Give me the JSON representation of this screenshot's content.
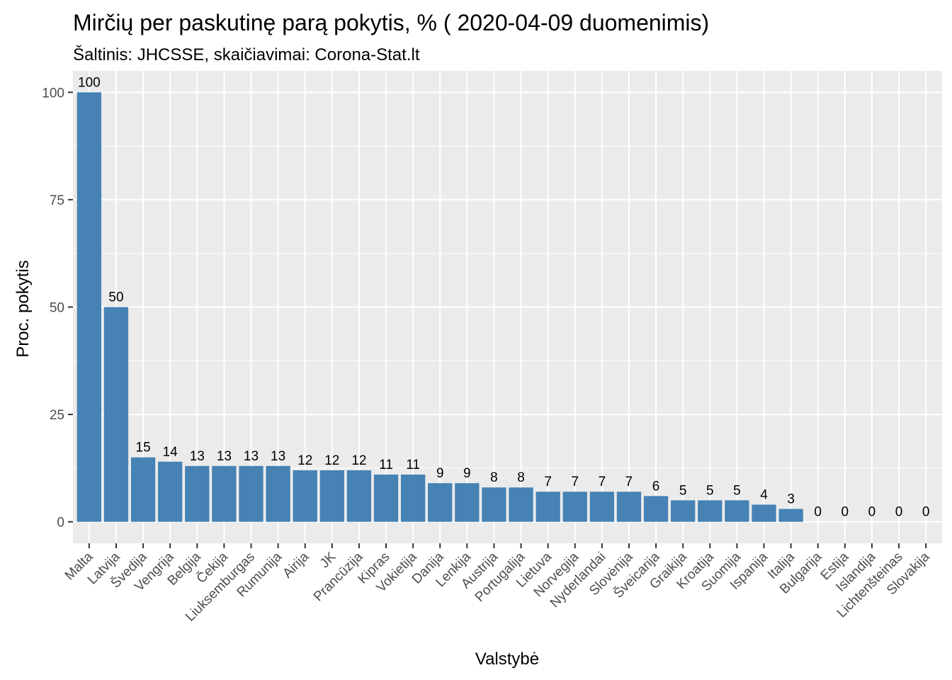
{
  "chart_data": {
    "type": "bar",
    "title": "Mirčių per paskutinę parą pokytis, % ( 2020-04-09 duomenimis)",
    "subtitle": "Šaltinis: JHCSSE, skaičiavimai: Corona-Stat.lt",
    "xlabel": "Valstybė",
    "ylabel": "Proc. pokytis",
    "ylim": [
      -5,
      105
    ],
    "yticks": [
      0,
      25,
      50,
      75,
      100
    ],
    "grid": true,
    "legend": "none",
    "colors": {
      "bar": "#4682B4",
      "panel": "#EBEBEB",
      "grid": "#FFFFFF",
      "tick": "#333333"
    },
    "categories": [
      "Malta",
      "Latvija",
      "Švedija",
      "Vengrija",
      "Belgija",
      "Čekija",
      "Liuksemburgas",
      "Rumunija",
      "Airija",
      "JK",
      "Prancūzija",
      "Kipras",
      "Vokietija",
      "Danija",
      "Lenkija",
      "Austrija",
      "Portugalija",
      "Lietuva",
      "Norvegija",
      "Nyderlandai",
      "Slovėnija",
      "Šveicarija",
      "Graikija",
      "Kroatija",
      "Suomija",
      "Ispanija",
      "Italija",
      "Bulgarija",
      "Estija",
      "Islandija",
      "Lichtenšteinas",
      "Slovakija"
    ],
    "values": [
      100,
      50,
      15,
      14,
      13,
      13,
      13,
      13,
      12,
      12,
      12,
      11,
      11,
      9,
      9,
      8,
      8,
      7,
      7,
      7,
      7,
      6,
      5,
      5,
      5,
      4,
      3,
      0,
      0,
      0,
      0,
      0
    ],
    "data_labels": [
      "100",
      "50",
      "15",
      "14",
      "13",
      "13",
      "13",
      "13",
      "12",
      "12",
      "12",
      "11",
      "11",
      "9",
      "9",
      "8",
      "8",
      "7",
      "7",
      "7",
      "7",
      "6",
      "5",
      "5",
      "5",
      "4",
      "3",
      "0",
      "0",
      "0",
      "0",
      "0"
    ]
  }
}
